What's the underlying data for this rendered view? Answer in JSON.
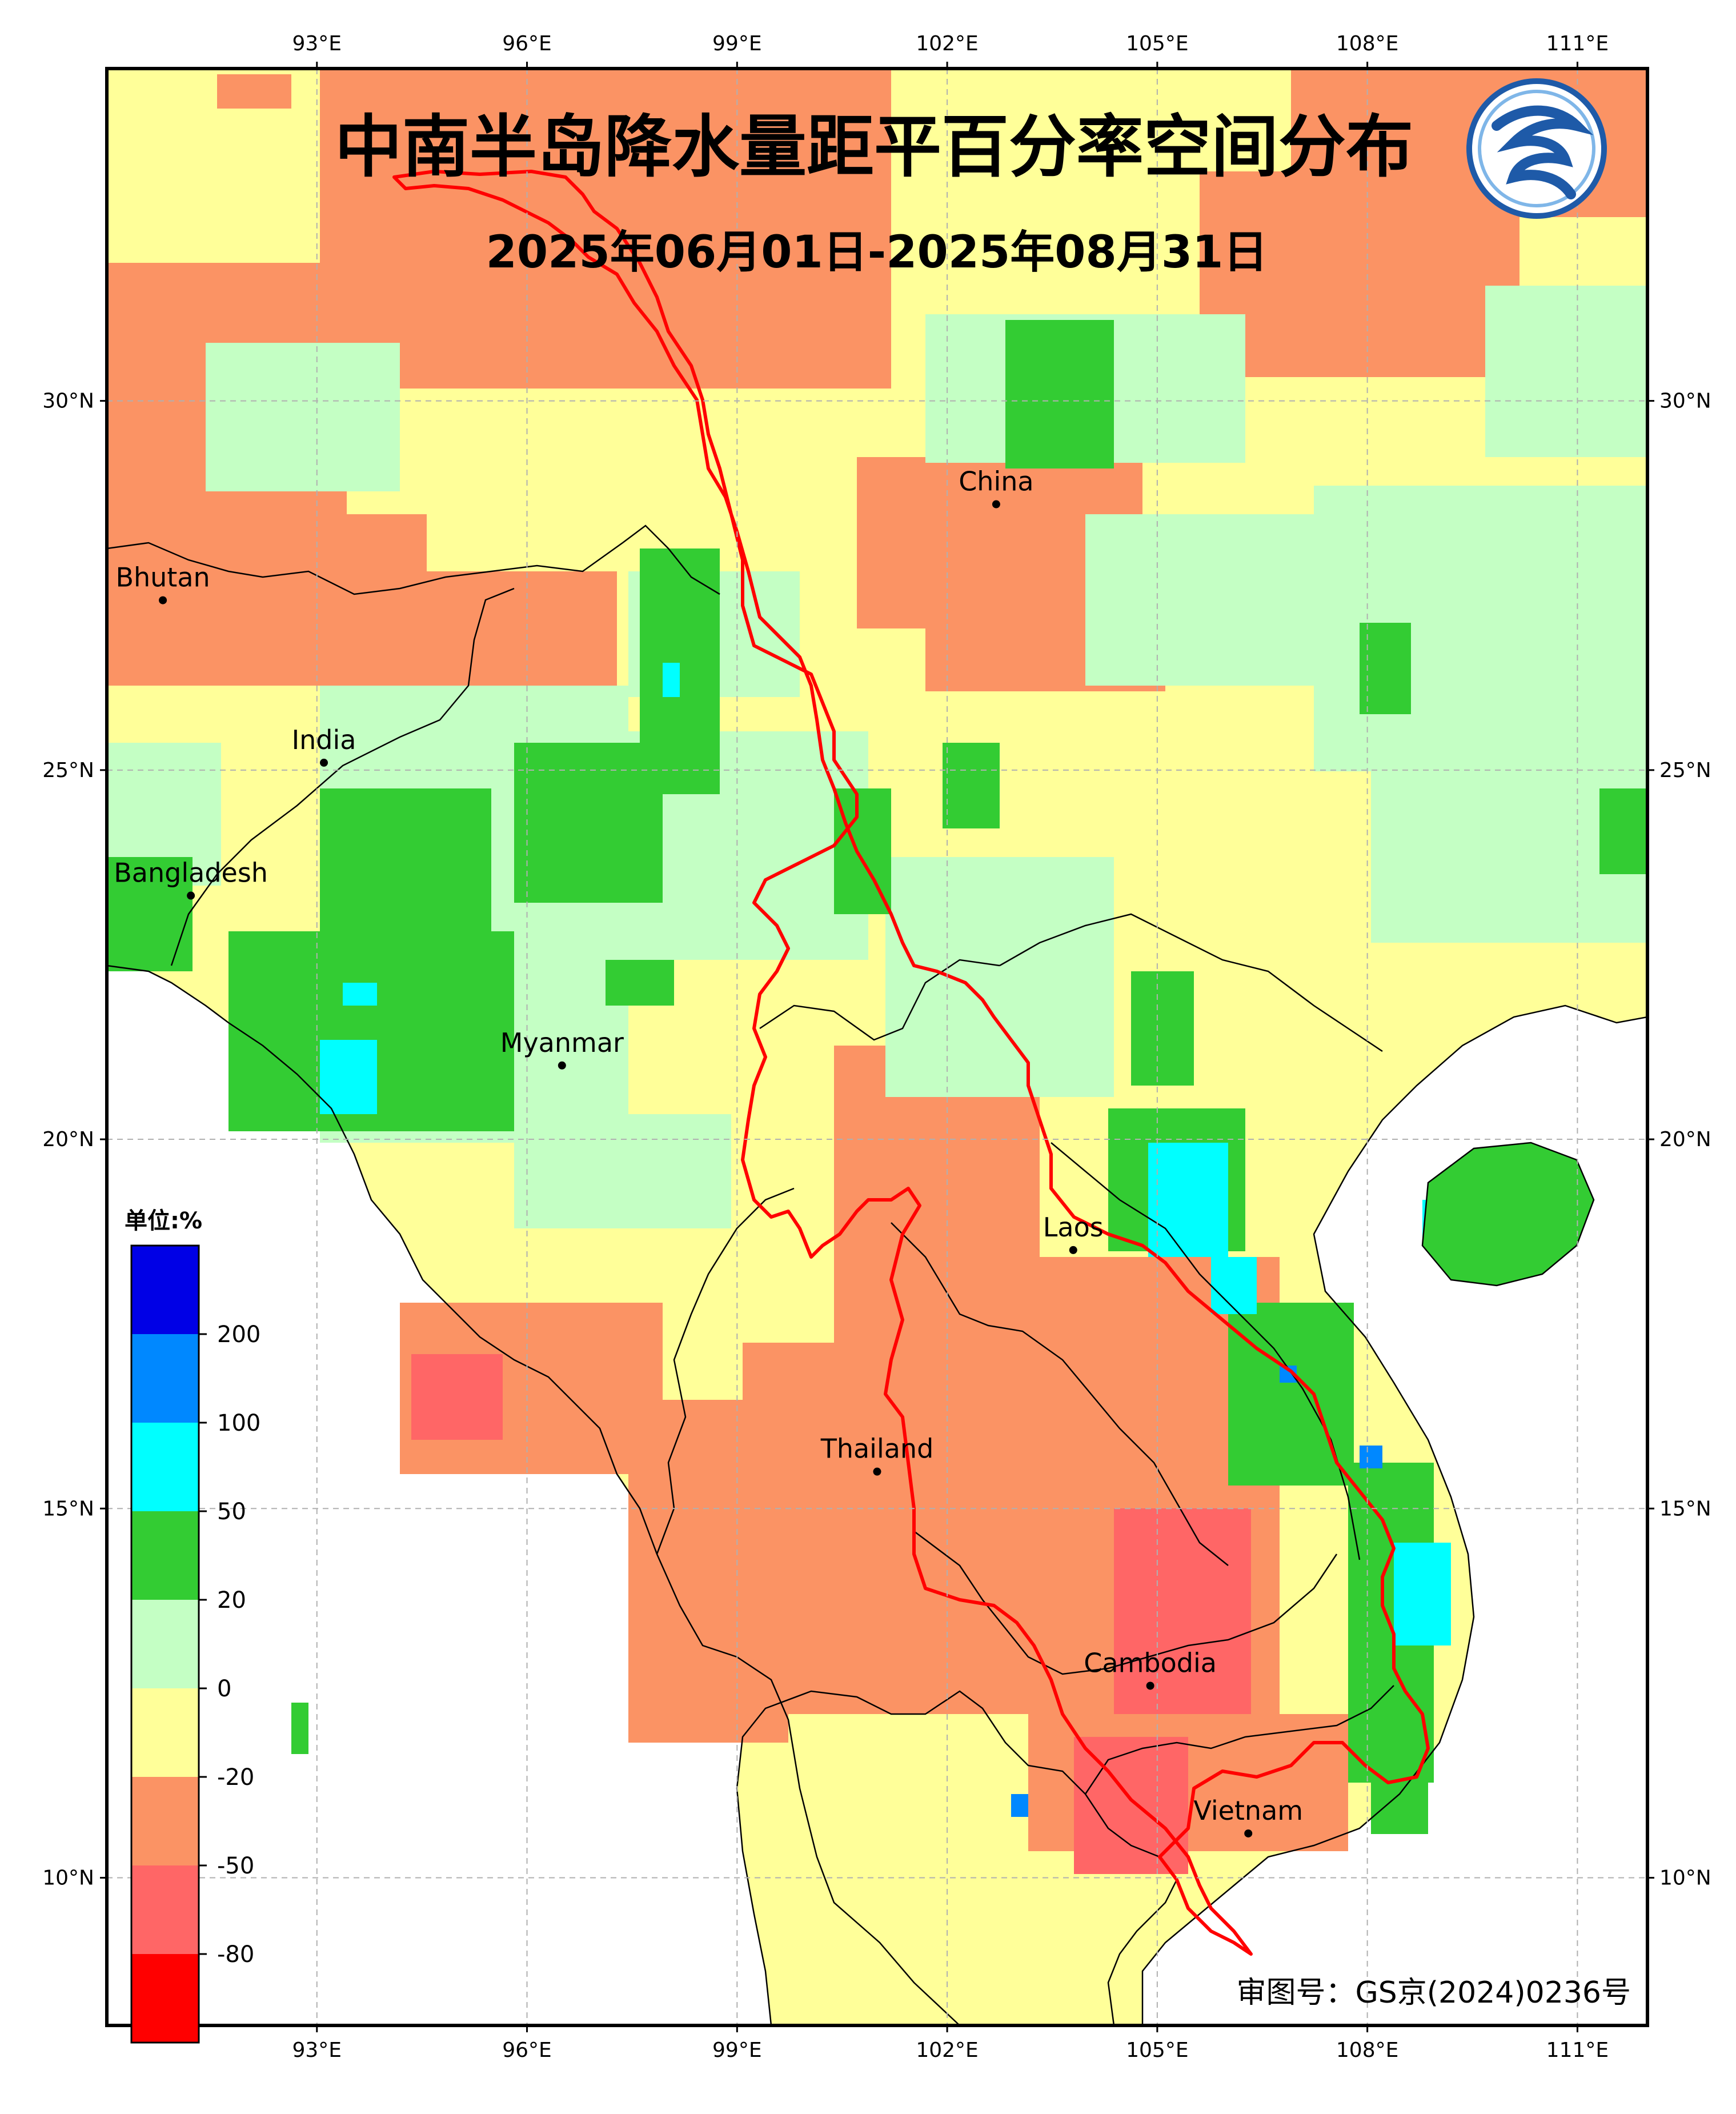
{
  "title": "中南半岛降水量距平百分率空间分布",
  "subtitle": "2025年06月01日-2025年08月31日",
  "approval_number": "审图号：GS京(2024)0236号",
  "logo": {
    "icon": "cma-logo-icon",
    "colors": [
      "#1e5aa8",
      "#7fb6e8"
    ]
  },
  "axes": {
    "lon_ticks": [
      "93°E",
      "96°E",
      "99°E",
      "102°E",
      "105°E",
      "108°E",
      "111°E"
    ],
    "lat_ticks": [
      "30°N",
      "25°N",
      "20°N",
      "15°N",
      "10°N"
    ],
    "lon_range": [
      90,
      112
    ],
    "lat_range": [
      8,
      34.5
    ],
    "grid": true
  },
  "places": [
    {
      "name": "China",
      "lon": 102.7,
      "lat": 28.6
    },
    {
      "name": "Bhutan",
      "lon": 90.8,
      "lat": 27.3
    },
    {
      "name": "India",
      "lon": 93.1,
      "lat": 25.1
    },
    {
      "name": "Bangladesh",
      "lon": 91.2,
      "lat": 23.3
    },
    {
      "name": "Myanmar",
      "lon": 96.5,
      "lat": 21.0
    },
    {
      "name": "Laos",
      "lon": 103.8,
      "lat": 18.5
    },
    {
      "name": "Thailand",
      "lon": 101.0,
      "lat": 15.5
    },
    {
      "name": "Cambodia",
      "lon": 104.9,
      "lat": 12.6
    },
    {
      "name": "Vietnam",
      "lon": 106.3,
      "lat": 10.6
    }
  ],
  "legend": {
    "title": "单位:%",
    "labels": [
      "200",
      "100",
      "50",
      "20",
      "0",
      "-20",
      "-50",
      "-80"
    ],
    "colors": [
      "#0000e6",
      "#0088ff",
      "#00ffff",
      "#33cc33",
      "#c4ffc4",
      "#ffff99",
      "#fb9364",
      "#ff6666",
      "#ff0000"
    ]
  },
  "colors": {
    "boundary": "#ff0000",
    "coast": "#000000",
    "grid": "#b0b0b0"
  }
}
